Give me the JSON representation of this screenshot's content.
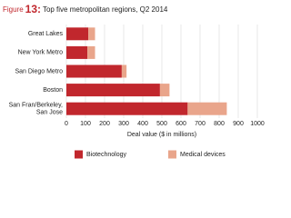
{
  "figure_prefix": "Figure",
  "figure_number": "13:",
  "chart_data": {
    "type": "stacked-barh",
    "title": "Top five metropolitan regions, Q2 2014",
    "categories": [
      "Great Lakes",
      "New York Metro",
      "San Diego Metro",
      "Boston",
      "San Fran/Berkeley,\nSan Jose"
    ],
    "series": [
      {
        "name": "Biotechnology",
        "color": "#c1272d",
        "values": [
          115,
          110,
          290,
          490,
          635
        ]
      },
      {
        "name": "Medical devices",
        "color": "#e9a58b",
        "values": [
          35,
          40,
          25,
          50,
          205
        ]
      }
    ],
    "xlabel": "Deal value ($ in millions)",
    "xlim": [
      0,
      1000
    ],
    "xticks": [
      0,
      100,
      200,
      300,
      400,
      500,
      600,
      700,
      800,
      900,
      1000
    ],
    "grid": true,
    "legend": "bottom"
  }
}
